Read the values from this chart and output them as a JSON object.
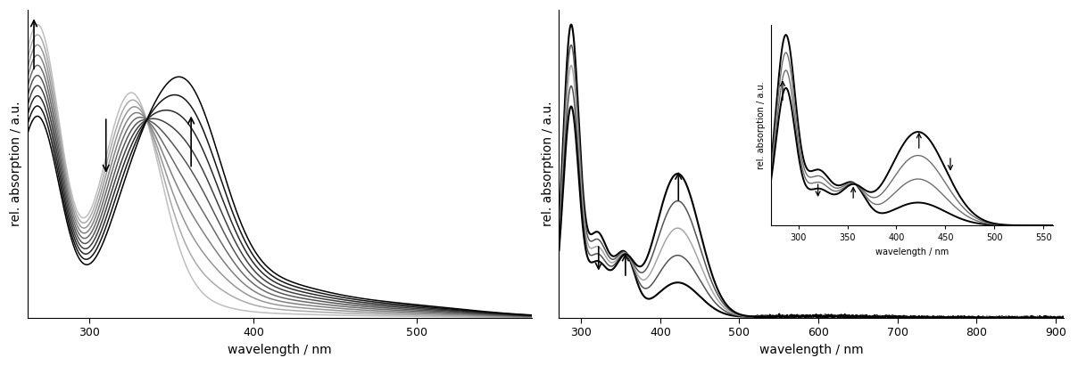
{
  "left_panel": {
    "xlabel": "wavelength / nm",
    "ylabel": "rel. absorption / a.u.",
    "xlim": [
      262,
      570
    ],
    "xticks": [
      300,
      400,
      500
    ],
    "n_curves": 10
  },
  "right_panel": {
    "xlabel": "wavelength / nm",
    "ylabel": "rel. absorption / a.u.",
    "xlim": [
      272,
      910
    ],
    "xticks": [
      300,
      400,
      500,
      600,
      700,
      800,
      900
    ],
    "n_curves": 5
  },
  "inset": {
    "xlim": [
      272,
      560
    ],
    "xticks": [
      300,
      350,
      400,
      450,
      500,
      550
    ],
    "xlabel": "wavelength / nm",
    "ylabel": "rel. absorption / a.u.",
    "n_curves": 4
  },
  "bg_color": "#ffffff"
}
